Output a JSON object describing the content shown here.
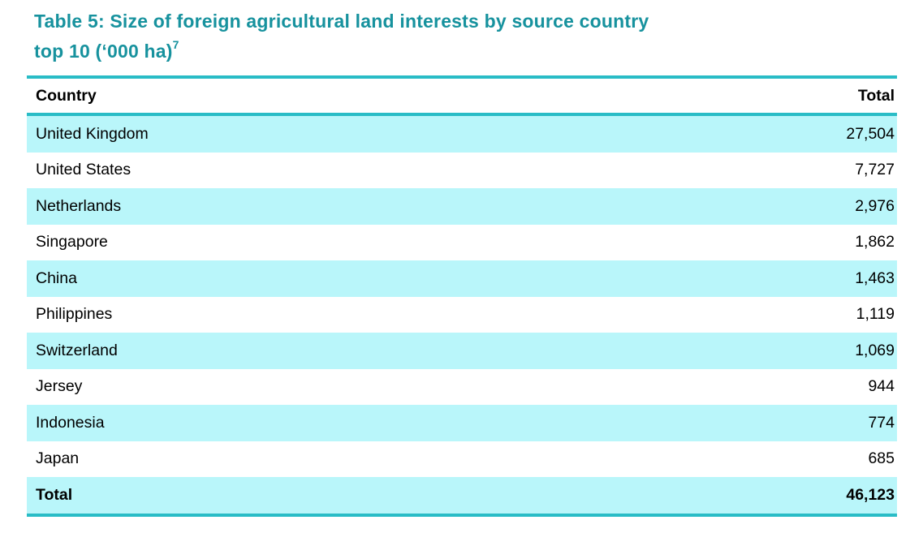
{
  "title": {
    "line1": "Table 5: Size of foreign agricultural land interests by source country",
    "line2": "top 10 (‘000 ha)",
    "footnote_marker": "7"
  },
  "colors": {
    "title_teal": "#17929E",
    "rule_teal": "#29BCC6",
    "row_highlight_cyan": "#B9F6FA",
    "text": "#000000",
    "background": "#FFFFFF"
  },
  "table": {
    "columns": {
      "country_header": "Country",
      "total_header": "Total"
    },
    "rows": [
      {
        "country": "United Kingdom",
        "total": "27,504"
      },
      {
        "country": "United States",
        "total": "7,727"
      },
      {
        "country": "Netherlands",
        "total": "2,976"
      },
      {
        "country": "Singapore",
        "total": "1,862"
      },
      {
        "country": "China",
        "total": "1,463"
      },
      {
        "country": "Philippines",
        "total": "1,119"
      },
      {
        "country": "Switzerland",
        "total": "1,069"
      },
      {
        "country": "Jersey",
        "total": "944"
      },
      {
        "country": "Indonesia",
        "total": "774"
      },
      {
        "country": "Japan",
        "total": "685"
      }
    ],
    "total_row": {
      "label": "Total",
      "total": "46,123"
    }
  }
}
